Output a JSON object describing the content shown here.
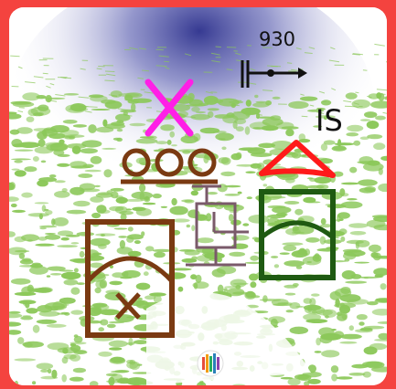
{
  "frame_color": "#f4433f",
  "labels": {
    "scale_value": "930",
    "is_label": "IS"
  },
  "symbols": [
    {
      "name": "magenta-x-icon",
      "color": "#ff1fe6"
    },
    {
      "name": "three-circles-icon",
      "color": "#7a3a12"
    },
    {
      "name": "red-triangle-icon",
      "color": "#ff1a1a"
    },
    {
      "name": "brown-box-x-icon",
      "color": "#7a3a12"
    },
    {
      "name": "mauve-box-icon",
      "color": "#7a5a6a"
    },
    {
      "name": "green-arch-box-icon",
      "color": "#1f5a12"
    },
    {
      "name": "color-bars-logo-icon"
    }
  ],
  "scale_marker_icon": "scale-arrow-icon",
  "background": {
    "texture_color": "#8cc85a",
    "haze_color": "#3a3f9a"
  }
}
